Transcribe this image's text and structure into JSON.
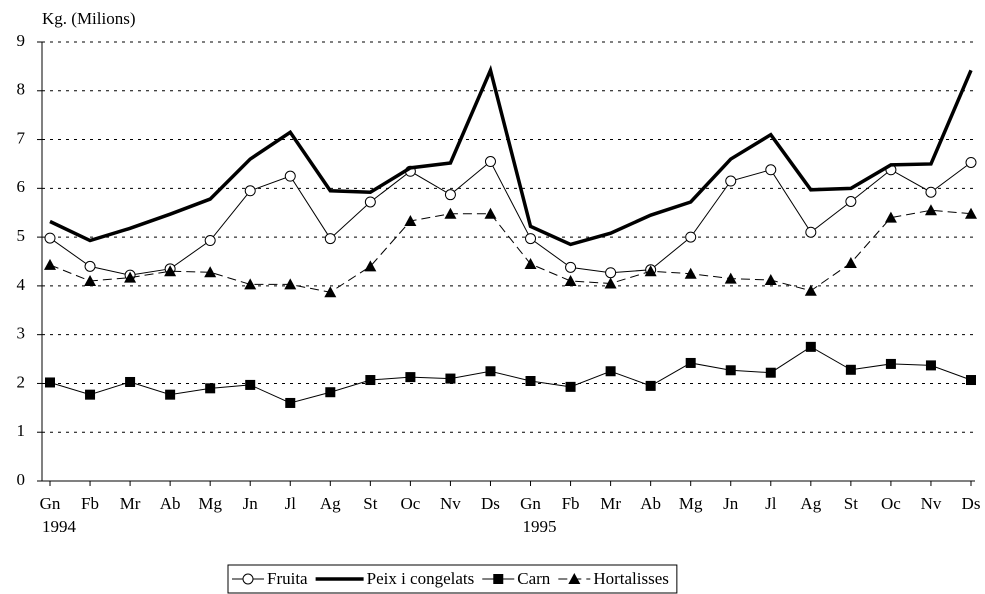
{
  "chart_data": {
    "type": "line",
    "y_label": "Kg. (Milions)",
    "categories": [
      "Gn",
      "Fb",
      "Mr",
      "Ab",
      "Mg",
      "Jn",
      "Jl",
      "Ag",
      "St",
      "Oc",
      "Nv",
      "Ds",
      "Gn",
      "Fb",
      "Mr",
      "Ab",
      "Mg",
      "Jn",
      "Jl",
      "Ag",
      "St",
      "Oc",
      "Nv",
      "Ds"
    ],
    "years": [
      {
        "index": 0,
        "label": "1994"
      },
      {
        "index": 12,
        "label": "1995"
      }
    ],
    "ylim": [
      0,
      9
    ],
    "yticks": [
      0,
      1,
      2,
      3,
      4,
      5,
      6,
      7,
      8,
      9
    ],
    "grid": true,
    "legend": "bottom",
    "series": [
      {
        "name": "Fruita",
        "color": "#000000",
        "marker": "circle",
        "line": "solid",
        "values": [
          4.98,
          4.4,
          4.22,
          4.35,
          4.93,
          5.95,
          6.25,
          4.97,
          5.72,
          6.35,
          5.87,
          6.55,
          4.97,
          4.38,
          4.27,
          4.33,
          5.0,
          6.15,
          6.38,
          5.1,
          5.73,
          6.38,
          5.92,
          6.53
        ]
      },
      {
        "name": "Peix i congelats",
        "color": "#000000",
        "marker": "none",
        "line": "thick",
        "values": [
          5.32,
          4.93,
          5.18,
          5.47,
          5.78,
          6.6,
          7.15,
          5.95,
          5.92,
          6.42,
          6.52,
          8.42,
          5.22,
          4.85,
          5.08,
          5.45,
          5.72,
          6.6,
          7.1,
          5.97,
          6.0,
          6.48,
          6.5,
          8.42
        ]
      },
      {
        "name": "Carn",
        "color": "#000000",
        "marker": "square",
        "line": "solid",
        "values": [
          2.02,
          1.77,
          2.03,
          1.77,
          1.9,
          1.97,
          1.6,
          1.82,
          2.07,
          2.13,
          2.1,
          2.25,
          2.05,
          1.93,
          2.25,
          1.95,
          2.42,
          2.27,
          2.22,
          2.75,
          2.28,
          2.4,
          2.37,
          2.07
        ]
      },
      {
        "name": "Hortalisses",
        "color": "#000000",
        "marker": "triangle",
        "line": "dashed",
        "values": [
          4.43,
          4.1,
          4.17,
          4.3,
          4.28,
          4.03,
          4.03,
          3.87,
          4.4,
          5.33,
          5.48,
          5.48,
          4.45,
          4.1,
          4.05,
          4.3,
          4.25,
          4.15,
          4.12,
          3.9,
          4.47,
          5.4,
          5.55,
          5.48
        ]
      }
    ]
  }
}
